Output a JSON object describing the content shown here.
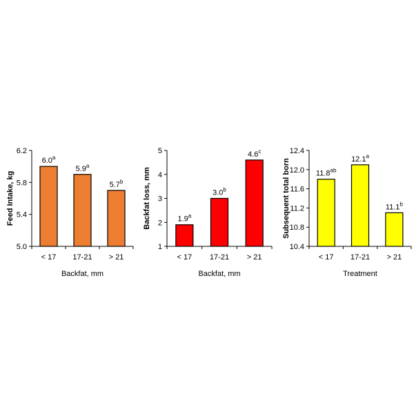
{
  "chart_data": [
    {
      "type": "bar",
      "categories": [
        "< 17",
        "17-21",
        "> 21"
      ],
      "values": [
        6.0,
        5.9,
        5.7
      ],
      "labels": [
        "6.0",
        "5.9",
        "5.7"
      ],
      "superscripts": [
        "a",
        "a",
        "b"
      ],
      "xlabel": "Backfat, mm",
      "ylabel": "Feed Intake, kg",
      "ylim": [
        5.0,
        6.2
      ],
      "yticks": [
        5.0,
        5.4,
        5.8,
        6.2
      ],
      "ytick_labels": [
        "5.0",
        "5.4",
        "5.8",
        "6.2"
      ],
      "color": "#ED7D31",
      "grid": false
    },
    {
      "type": "bar",
      "categories": [
        "< 17",
        "17-21",
        "> 21"
      ],
      "values": [
        1.9,
        3.0,
        4.6
      ],
      "labels": [
        "1.9",
        "3.0",
        "4.6"
      ],
      "superscripts": [
        "a",
        "b",
        "c"
      ],
      "xlabel": "Backfat, mm",
      "ylabel": "Backfat loss, mm",
      "ylim": [
        1,
        5
      ],
      "yticks": [
        1,
        2,
        3,
        4,
        5
      ],
      "ytick_labels": [
        "1",
        "2",
        "3",
        "4",
        "5"
      ],
      "color": "#FF0000",
      "grid": false
    },
    {
      "type": "bar",
      "categories": [
        "< 17",
        "17-21",
        "> 21"
      ],
      "values": [
        11.8,
        12.1,
        11.1
      ],
      "labels": [
        "11.8",
        "12.1",
        "11.1"
      ],
      "superscripts": [
        "ab",
        "a",
        "b"
      ],
      "xlabel": "Treatment",
      "ylabel": "Subsequent total born",
      "ylim": [
        10.4,
        12.4
      ],
      "yticks": [
        10.4,
        10.8,
        11.2,
        11.6,
        12.0,
        12.4
      ],
      "ytick_labels": [
        "10.4",
        "10.8",
        "11.2",
        "11.6",
        "12.0",
        "12.4"
      ],
      "color": "#FFFF00",
      "grid": false
    }
  ]
}
